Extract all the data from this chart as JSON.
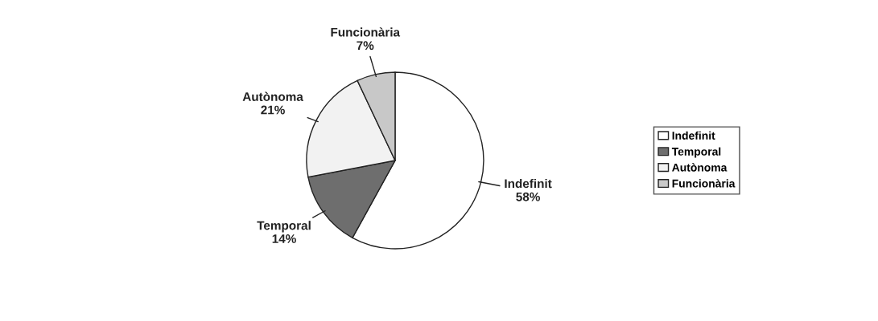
{
  "chart_data": {
    "type": "pie",
    "categories": [
      "Indefinit",
      "Temporal",
      "Autònoma",
      "Funcionària"
    ],
    "values": [
      58,
      14,
      21,
      7
    ],
    "colors": [
      "#ffffff",
      "#6e6e6e",
      "#f2f2f2",
      "#c8c8c8"
    ],
    "value_labels": [
      "58%",
      "14%",
      "21%",
      "7%"
    ],
    "legend": "right"
  }
}
